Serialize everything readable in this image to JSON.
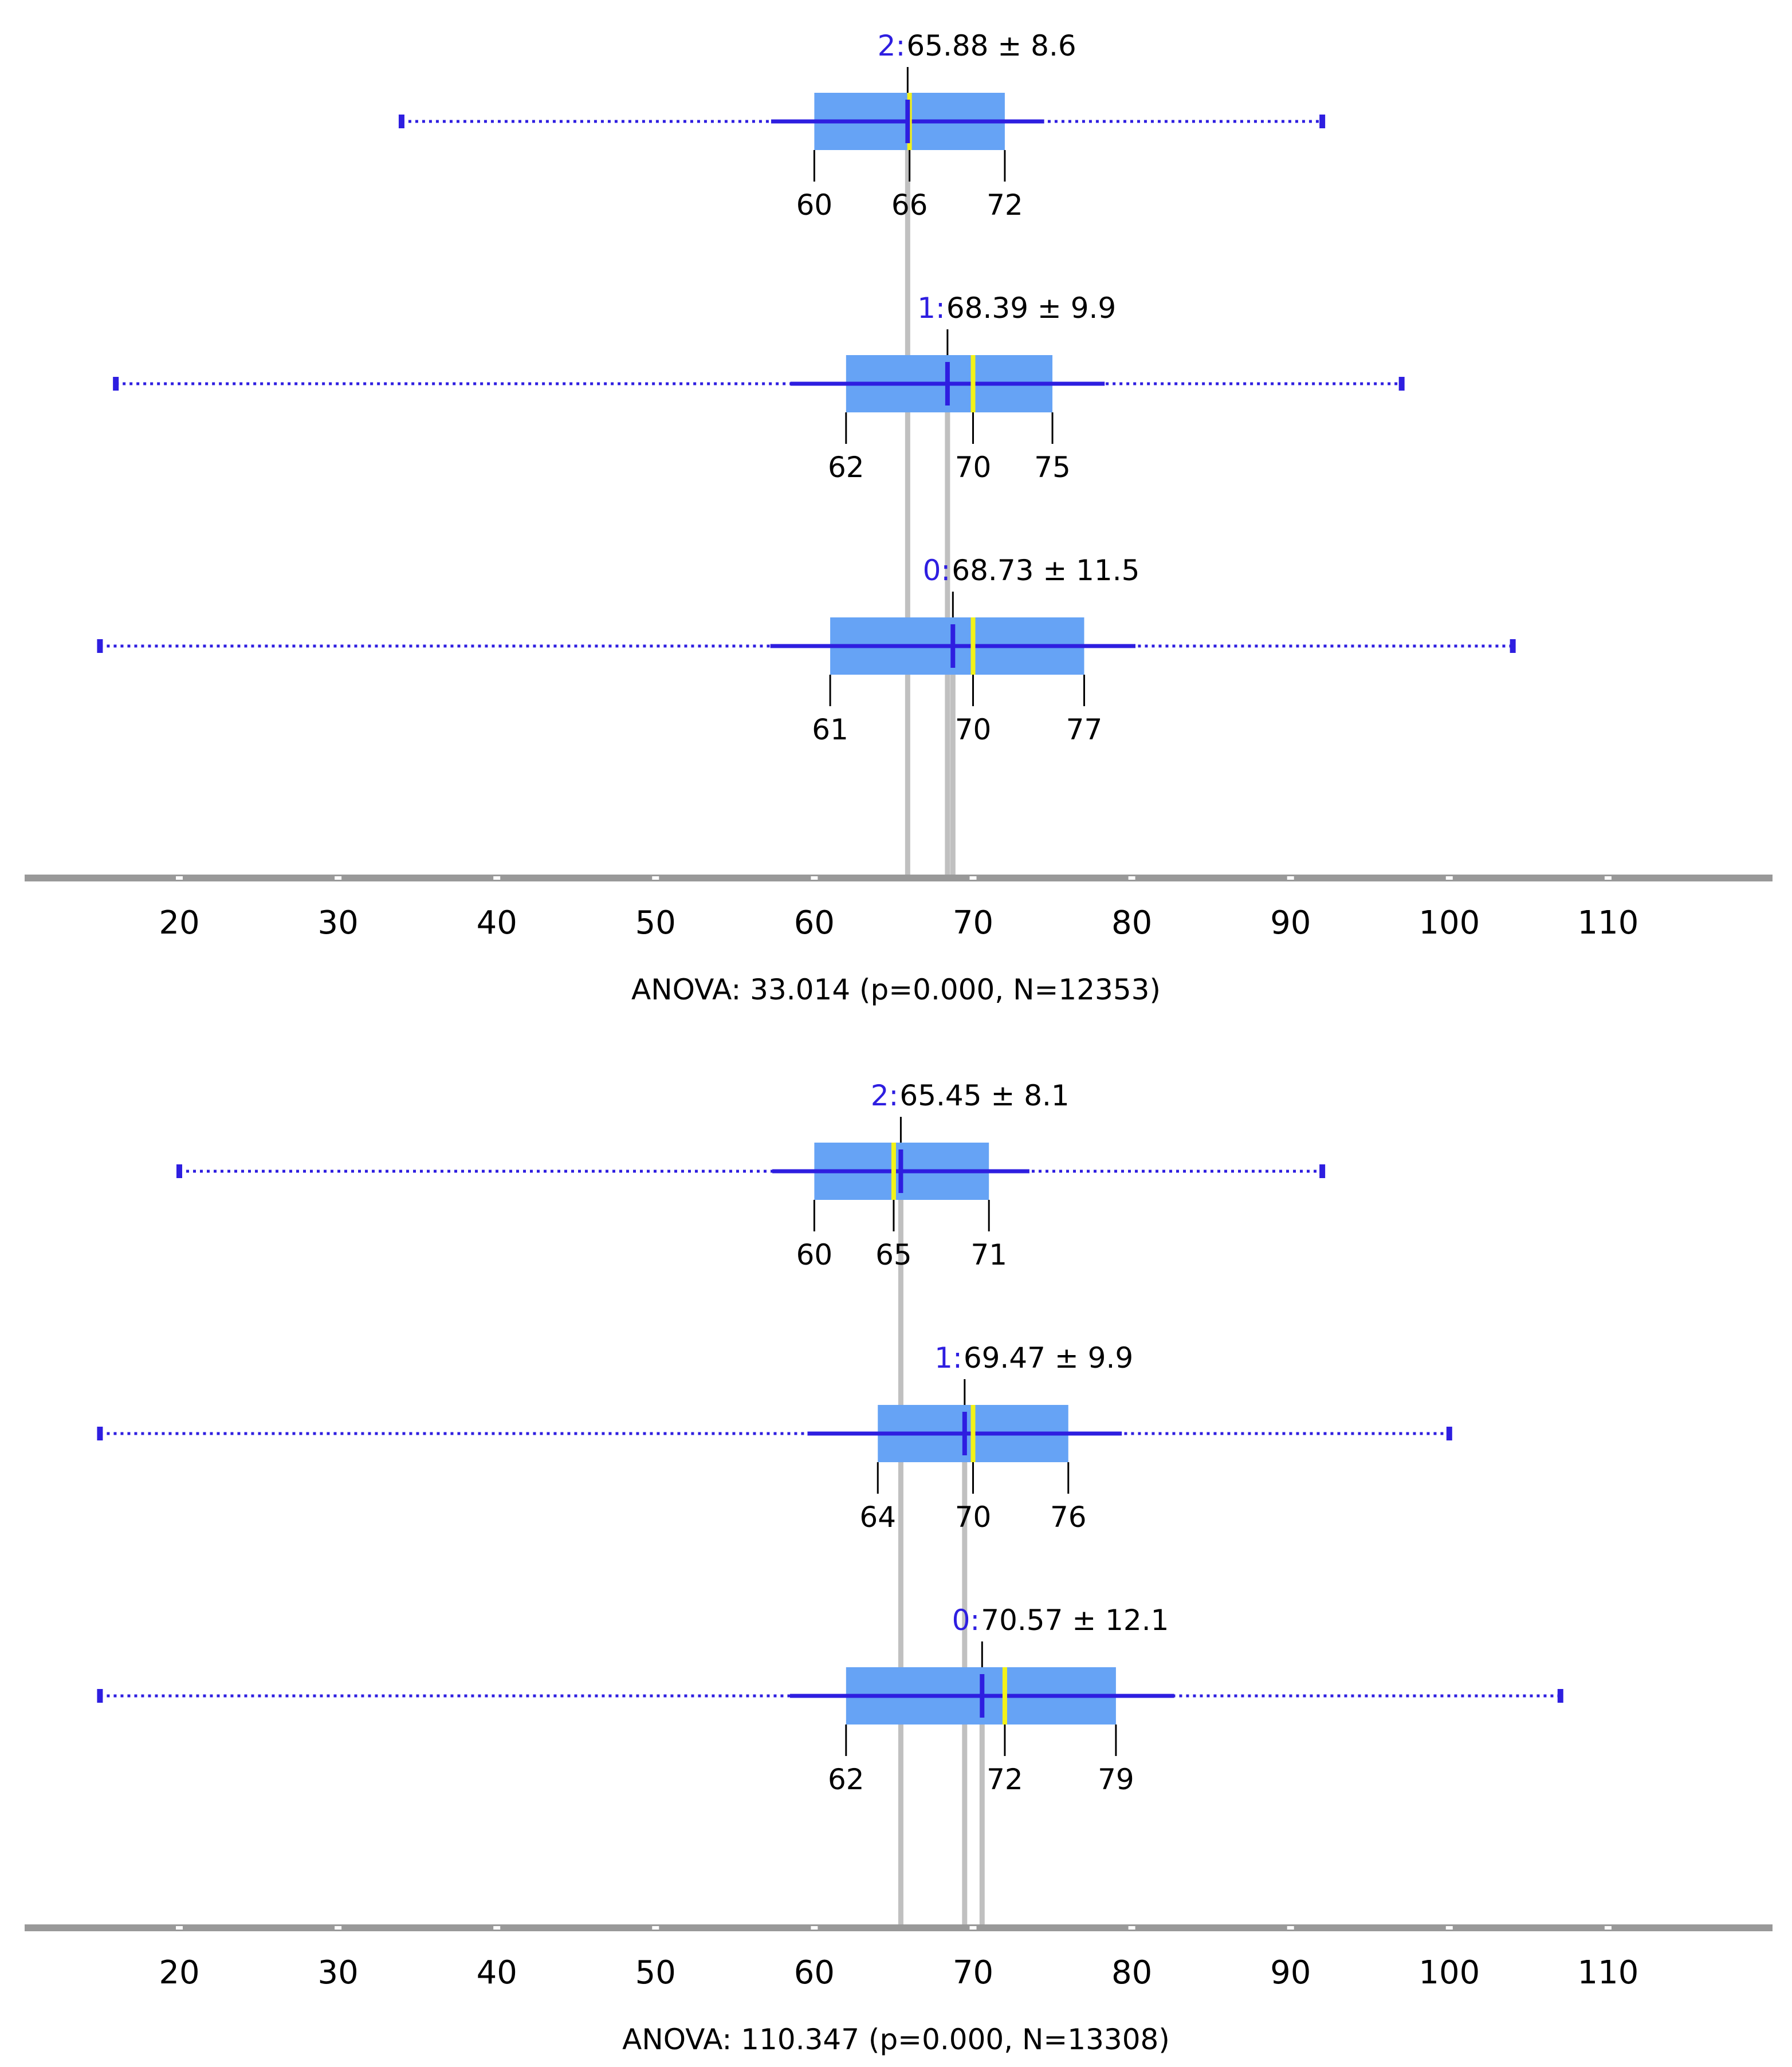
{
  "colors": {
    "box_fill": "#66a3f5",
    "whisker": "#2e1ee0",
    "median": "#f2f21a",
    "mean_line": "#c0c0c0",
    "axis": "#999999",
    "group_label": "#2e1ee0"
  },
  "chart_data": [
    {
      "type": "boxplot",
      "axis_ticks": [
        20,
        30,
        40,
        50,
        60,
        70,
        80,
        90,
        100,
        110
      ],
      "xlim": [
        10,
        120
      ],
      "footer": "ANOVA: 33.014 (p=0.000, N=12353)",
      "groups": [
        {
          "id": "2",
          "id_label": "2:",
          "summary": "65.88 ± 8.6",
          "mean": 65.88,
          "sd": 8.6,
          "min": 34,
          "max": 92,
          "q1": 60,
          "median": 66,
          "q3": 72,
          "q1_label": "60",
          "median_label": "66",
          "q3_label": "72"
        },
        {
          "id": "1",
          "id_label": "1:",
          "summary": "68.39 ± 9.9",
          "mean": 68.39,
          "sd": 9.9,
          "min": 16,
          "max": 97,
          "q1": 62,
          "median": 70,
          "q3": 75,
          "q1_label": "62",
          "median_label": "70",
          "q3_label": "75"
        },
        {
          "id": "0",
          "id_label": "0:",
          "summary": "68.73 ± 11.5",
          "mean": 68.73,
          "sd": 11.5,
          "min": 15,
          "max": 104,
          "q1": 61,
          "median": 70,
          "q3": 77,
          "q1_label": "61",
          "median_label": "70",
          "q3_label": "77"
        }
      ]
    },
    {
      "type": "boxplot",
      "axis_ticks": [
        20,
        30,
        40,
        50,
        60,
        70,
        80,
        90,
        100,
        110
      ],
      "xlim": [
        10,
        120
      ],
      "footer": "ANOVA: 110.347 (p=0.000, N=13308)",
      "groups": [
        {
          "id": "2",
          "id_label": "2:",
          "summary": "65.45 ± 8.1",
          "mean": 65.45,
          "sd": 8.1,
          "min": 20,
          "max": 92,
          "q1": 60,
          "median": 65,
          "q3": 71,
          "q1_label": "60",
          "median_label": "65",
          "q3_label": "71"
        },
        {
          "id": "1",
          "id_label": "1:",
          "summary": "69.47 ± 9.9",
          "mean": 69.47,
          "sd": 9.9,
          "min": 15,
          "max": 100,
          "q1": 64,
          "median": 70,
          "q3": 76,
          "q1_label": "64",
          "median_label": "70",
          "q3_label": "76"
        },
        {
          "id": "0",
          "id_label": "0:",
          "summary": "70.57 ± 12.1",
          "mean": 70.57,
          "sd": 12.1,
          "min": 15,
          "max": 107,
          "q1": 62,
          "median": 72,
          "q3": 79,
          "q1_label": "62",
          "median_label": "72",
          "q3_label": "79"
        }
      ]
    }
  ]
}
